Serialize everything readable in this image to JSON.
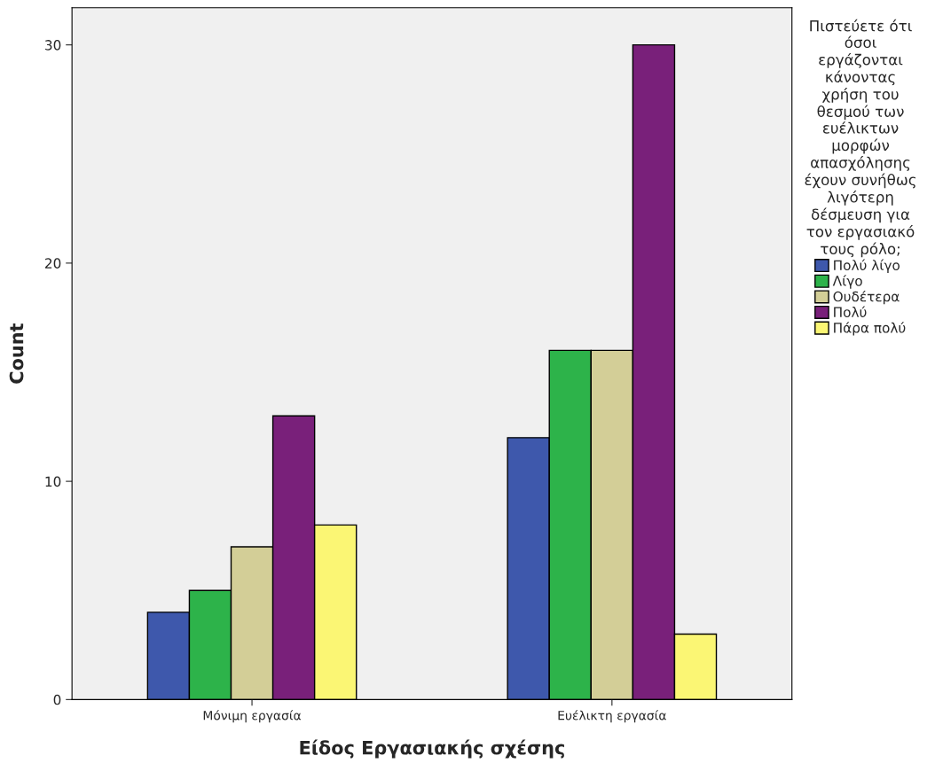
{
  "chart_data": {
    "type": "bar",
    "xlabel": "Είδος Εργασιακής σχέσης",
    "ylabel": "Count",
    "legend_title": "Πιστεύετε ότι\nόσοι\nεργάζονται\nκάνοντας\nχρήση του\nθεσμού των\nευέλικτων\nμορφών\nαπασχόλησης\nέχουν συνήθως\nλιγότερη\nδέσμευση για\nτον εργασιακό\nτους ρόλο;",
    "categories": [
      "Μόνιμη εργασία",
      "Ευέλικτη εργασία"
    ],
    "series": [
      {
        "name": "Πολύ λίγο",
        "color": "#3e58ac",
        "values": [
          4,
          12
        ]
      },
      {
        "name": "Λίγο",
        "color": "#2db34a",
        "values": [
          5,
          16
        ]
      },
      {
        "name": "Ουδέτερα",
        "color": "#d3ce97",
        "values": [
          7,
          16
        ]
      },
      {
        "name": "Πολύ",
        "color": "#79207a",
        "values": [
          13,
          30
        ]
      },
      {
        "name": "Πάρα πολύ",
        "color": "#fbf674",
        "values": [
          8,
          3
        ]
      }
    ],
    "ylim": [
      0,
      31.7
    ],
    "yticks": [
      0,
      10,
      20,
      30
    ],
    "grid": false,
    "legend": "right"
  }
}
